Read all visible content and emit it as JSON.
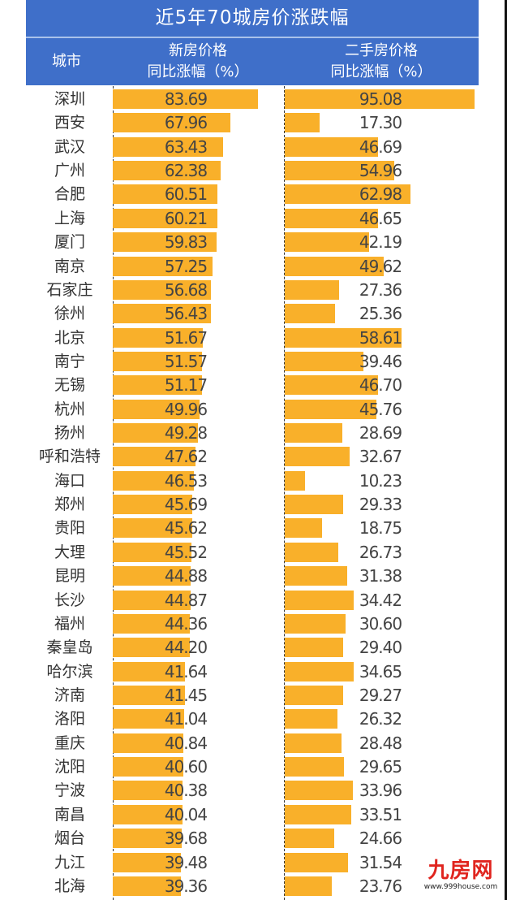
{
  "header": {
    "title": "近5年70城房价涨跌幅",
    "col_city": "城市",
    "col_new_line1": "新房价格",
    "col_new_line2": "同比涨幅（%）",
    "col_sec_line1": "二手房价格",
    "col_sec_line2": "同比涨幅（%）"
  },
  "watermark": {
    "logo": "九房网",
    "url": "www.999house.com"
  },
  "colors": {
    "header_bg": "#3f6fc9",
    "bar": "#f9b02a",
    "text": "#444444"
  },
  "rows": [
    {
      "city": "深圳",
      "new": "83.69",
      "sec": "95.08"
    },
    {
      "city": "西安",
      "new": "67.96",
      "sec": "17.30"
    },
    {
      "city": "武汉",
      "new": "63.43",
      "sec": "46.69"
    },
    {
      "city": "广州",
      "new": "62.38",
      "sec": "54.96"
    },
    {
      "city": "合肥",
      "new": "60.51",
      "sec": "62.98"
    },
    {
      "city": "上海",
      "new": "60.21",
      "sec": "46.65"
    },
    {
      "city": "厦门",
      "new": "59.83",
      "sec": "42.19"
    },
    {
      "city": "南京",
      "new": "57.25",
      "sec": "49.62"
    },
    {
      "city": "石家庄",
      "new": "56.68",
      "sec": "27.36"
    },
    {
      "city": "徐州",
      "new": "56.43",
      "sec": "25.36"
    },
    {
      "city": "北京",
      "new": "51.67",
      "sec": "58.61"
    },
    {
      "city": "南宁",
      "new": "51.57",
      "sec": "39.46"
    },
    {
      "city": "无锡",
      "new": "51.17",
      "sec": "46.70"
    },
    {
      "city": "杭州",
      "new": "49.96",
      "sec": "45.76"
    },
    {
      "city": "扬州",
      "new": "49.28",
      "sec": "28.69"
    },
    {
      "city": "呼和浩特",
      "new": "47.62",
      "sec": "32.67"
    },
    {
      "city": "海口",
      "new": "46.53",
      "sec": "10.23"
    },
    {
      "city": "郑州",
      "new": "45.69",
      "sec": "29.33"
    },
    {
      "city": "贵阳",
      "new": "45.62",
      "sec": "18.75"
    },
    {
      "city": "大理",
      "new": "45.52",
      "sec": "26.73"
    },
    {
      "city": "昆明",
      "new": "44.88",
      "sec": "31.38"
    },
    {
      "city": "长沙",
      "new": "44.87",
      "sec": "34.42"
    },
    {
      "city": "福州",
      "new": "44.36",
      "sec": "30.60"
    },
    {
      "city": "秦皇岛",
      "new": "44.20",
      "sec": "29.40"
    },
    {
      "city": "哈尔滨",
      "new": "41.64",
      "sec": "34.65"
    },
    {
      "city": "济南",
      "new": "41.45",
      "sec": "29.27"
    },
    {
      "city": "洛阳",
      "new": "41.04",
      "sec": "26.32"
    },
    {
      "city": "重庆",
      "new": "40.84",
      "sec": "28.48"
    },
    {
      "city": "沈阳",
      "new": "40.60",
      "sec": "29.65"
    },
    {
      "city": "宁波",
      "new": "40.38",
      "sec": "33.96"
    },
    {
      "city": "南昌",
      "new": "40.04",
      "sec": "33.51"
    },
    {
      "city": "烟台",
      "new": "39.68",
      "sec": "24.66"
    },
    {
      "city": "九江",
      "new": "39.48",
      "sec": "31.54"
    },
    {
      "city": "北海",
      "new": "39.36",
      "sec": "23.76"
    }
  ],
  "chart_data": {
    "type": "bar",
    "orientation": "horizontal",
    "title": "近5年70城房价涨跌幅",
    "xlabel": "同比涨幅（%）",
    "ylabel": "城市",
    "categories": [
      "深圳",
      "西安",
      "武汉",
      "广州",
      "合肥",
      "上海",
      "厦门",
      "南京",
      "石家庄",
      "徐州",
      "北京",
      "南宁",
      "无锡",
      "杭州",
      "扬州",
      "呼和浩特",
      "海口",
      "郑州",
      "贵阳",
      "大理",
      "昆明",
      "长沙",
      "福州",
      "秦皇岛",
      "哈尔滨",
      "济南",
      "洛阳",
      "重庆",
      "沈阳",
      "宁波",
      "南昌",
      "烟台",
      "九江",
      "北海"
    ],
    "series": [
      {
        "name": "新房价格同比涨幅（%）",
        "values": [
          83.69,
          67.96,
          63.43,
          62.38,
          60.51,
          60.21,
          59.83,
          57.25,
          56.68,
          56.43,
          51.67,
          51.57,
          51.17,
          49.96,
          49.28,
          47.62,
          46.53,
          45.69,
          45.62,
          45.52,
          44.88,
          44.87,
          44.36,
          44.2,
          41.64,
          41.45,
          41.04,
          40.84,
          40.6,
          40.38,
          40.04,
          39.68,
          39.48,
          39.36
        ]
      },
      {
        "name": "二手房价格同比涨幅（%）",
        "values": [
          95.08,
          17.3,
          46.69,
          54.96,
          62.98,
          46.65,
          42.19,
          49.62,
          27.36,
          25.36,
          58.61,
          39.46,
          46.7,
          45.76,
          28.69,
          32.67,
          10.23,
          29.33,
          18.75,
          26.73,
          31.38,
          34.42,
          30.6,
          29.4,
          34.65,
          29.27,
          26.32,
          28.48,
          29.65,
          33.96,
          33.51,
          24.66,
          31.54,
          23.76
        ]
      }
    ],
    "grid": false,
    "legend": "none (column headers)",
    "data_labels": true
  }
}
